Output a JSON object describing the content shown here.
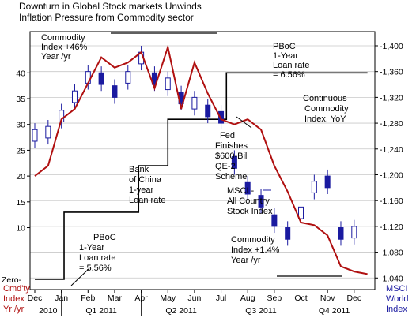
{
  "chart_data": {
    "type": "line",
    "title_lines": [
      "Downturn in Global Stock markets Unwinds",
      "Inflation Pressure from Commodity sector"
    ],
    "left_axis": {
      "label_lines": [
        "Cmd'ty",
        "Index",
        "Yr /yr"
      ],
      "ylim": [
        -2,
        48
      ],
      "ticks": [
        10,
        15,
        20,
        25,
        30,
        35,
        40
      ],
      "zero_label": "Zero"
    },
    "right_axis": {
      "label_lines": [
        "MSCI",
        "World",
        "Index"
      ],
      "ylim": [
        1022,
        1422
      ],
      "ticks": [
        "1,040",
        "1,080",
        "1,120",
        "1,160",
        "1,200",
        "1,240",
        "1,280",
        "1,320",
        "1,360",
        "1,400"
      ]
    },
    "x_axis": {
      "months": [
        "Dec",
        "Jan",
        "Feb",
        "Mar",
        "Apr",
        "May",
        "Jun",
        "Jul",
        "Aug",
        "Sep",
        "Oct",
        "Nov",
        "Dec"
      ],
      "periods": [
        {
          "label": "2010",
          "from": 0,
          "to": 1
        },
        {
          "label": "Q1 2011",
          "from": 1,
          "to": 4
        },
        {
          "label": "Q2 2011",
          "from": 4,
          "to": 7
        },
        {
          "label": "Q3 2011",
          "from": 7,
          "to": 10
        },
        {
          "label": "Q4 2011",
          "from": 10,
          "to": 12.5
        }
      ]
    },
    "series": [
      {
        "name": "Continuous Commodity Index, YoY",
        "color": "#b01010",
        "axis": "left",
        "x": [
          0,
          0.5,
          1,
          1.5,
          2,
          2.5,
          3,
          3.5,
          4,
          4.5,
          5,
          5.5,
          6,
          6.5,
          7,
          7.5,
          8,
          8.5,
          9,
          9.5,
          10,
          10.5,
          11,
          11.5,
          12,
          12.5
        ],
        "values": [
          20,
          22,
          31,
          33,
          38,
          43,
          41,
          42,
          44,
          37,
          45,
          33,
          42,
          36,
          31,
          30,
          31,
          29,
          22,
          17,
          11,
          10.5,
          8.5,
          2.5,
          1.5,
          1
        ]
      },
      {
        "name": "MSCI - All Country Stock Index",
        "color": "#1a1aa0",
        "axis": "right",
        "type": "candlestick",
        "x": [
          0,
          0.5,
          1,
          1.5,
          2,
          2.5,
          3,
          3.5,
          4,
          4.5,
          5,
          5.5,
          6,
          6.5,
          7,
          7.5,
          8,
          8.5,
          9,
          9.5,
          10,
          10.5,
          11,
          11.5,
          12
        ],
        "values": [
          1270,
          1275,
          1300,
          1330,
          1360,
          1340,
          1320,
          1360,
          1390,
          1340,
          1350,
          1310,
          1320,
          1290,
          1280,
          1210,
          1170,
          1150,
          1120,
          1100,
          1150,
          1190,
          1180,
          1100,
          1120
        ]
      },
      {
        "name": "PBoC 1-Year Loan rate",
        "color": "#000000",
        "axis": "left",
        "type": "step",
        "x": [
          0,
          1,
          1.1,
          2.1,
          3.9,
          5,
          7,
          7.2,
          12.5
        ],
        "values": [
          0,
          0,
          13,
          13,
          22,
          31,
          31,
          40,
          40
        ]
      }
    ],
    "annotations": [
      {
        "text_lines": [
          "Commodity",
          "Index +46%",
          "Year /yr"
        ]
      },
      {
        "text_lines": [
          "PBoC",
          "1-Year",
          "Loan rate",
          "= 6.56%"
        ]
      },
      {
        "text_lines": [
          "Continuous",
          "Commodity",
          "Index, YoY"
        ]
      },
      {
        "text_lines": [
          "Fed",
          "Finishes",
          "$600-Bil",
          "QE-2",
          "Scheme"
        ]
      },
      {
        "text_lines": [
          "Bank",
          "of China",
          "1-year",
          "Loan rate"
        ]
      },
      {
        "text_lines": [
          "MSCI -",
          "All Country",
          "Stock Index"
        ]
      },
      {
        "text_lines": [
          "PBoC",
          "1-Year",
          "Loan rate",
          "= 5.56%"
        ]
      },
      {
        "text_lines": [
          "Commodity",
          "Index +1.4%",
          "Year /yr"
        ]
      }
    ],
    "colors": {
      "commodity": "#b01010",
      "msci": "#1a1aa0",
      "step": "#000000",
      "grid": "#c8c8c8",
      "candle_up": "#ffffff",
      "candle_down": "#1a1aa0"
    }
  }
}
